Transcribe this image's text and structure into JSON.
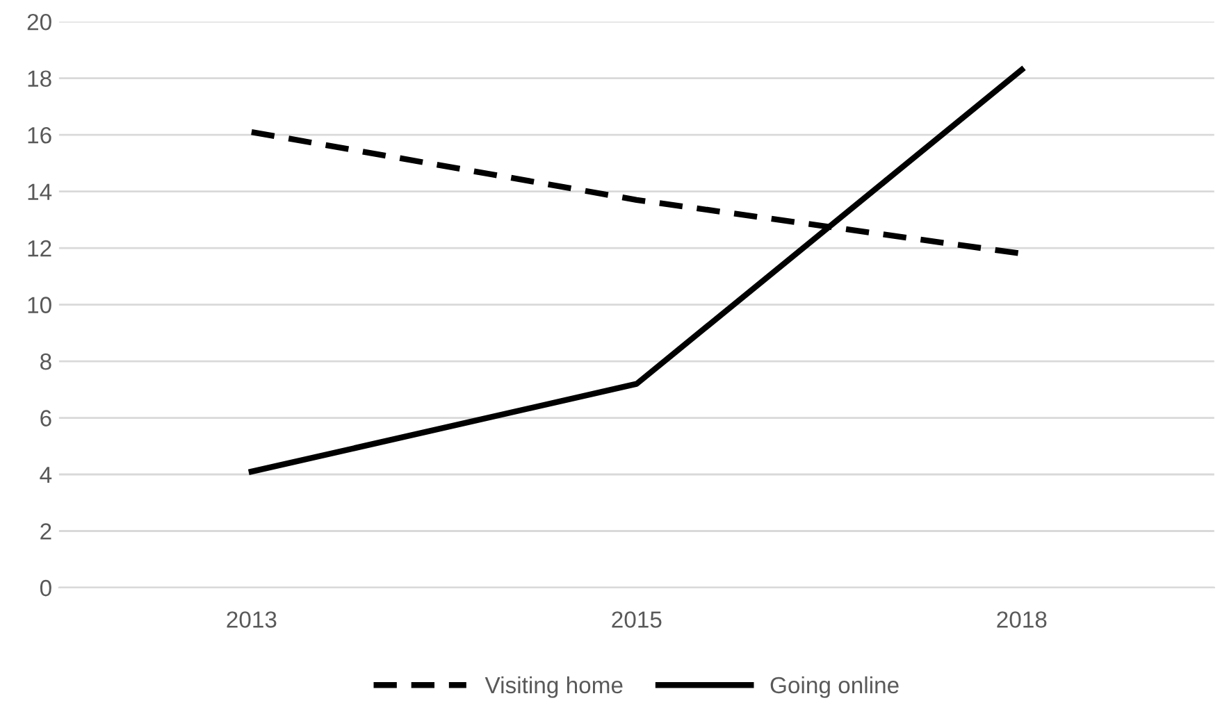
{
  "chart_data": {
    "type": "line",
    "categories": [
      "2013",
      "2015",
      "2018"
    ],
    "series": [
      {
        "name": "Visiting home",
        "color": "#000000",
        "values": [
          16.1,
          13.7,
          11.8
        ],
        "line_style": "dashed"
      },
      {
        "name": "Going online",
        "color": "#000000",
        "values": [
          4.1,
          7.2,
          18.3
        ],
        "line_style": "solid"
      }
    ],
    "ylim": [
      0,
      20
    ],
    "yticks": [
      0,
      2,
      4,
      6,
      8,
      10,
      12,
      14,
      16,
      18,
      20
    ],
    "grid": "y",
    "legend": "bottom",
    "marker": "none"
  }
}
